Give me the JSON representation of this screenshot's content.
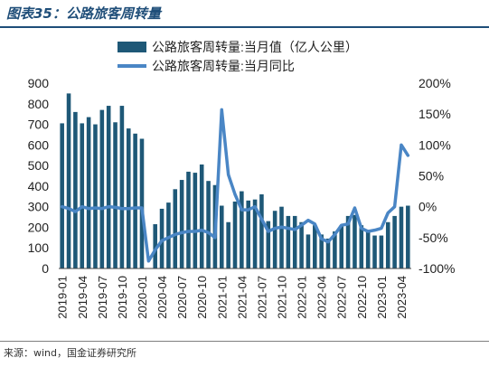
{
  "header": {
    "title": "图表35：公路旅客周转量"
  },
  "footer": {
    "source": "来源：wind，国金证券研究所"
  },
  "colors": {
    "bar": "#1e5877",
    "line": "#4a86c5",
    "title": "#1f4e79"
  },
  "chart_data": {
    "type": "bar+line",
    "left_axis": {
      "ylim": [
        0,
        900
      ],
      "ticks": [
        0,
        100,
        200,
        300,
        400,
        500,
        600,
        700,
        800,
        900
      ]
    },
    "right_axis": {
      "ylim": [
        -100,
        200
      ],
      "ticks": [
        "-100%",
        "-50%",
        "0%",
        "50%",
        "100%",
        "150%",
        "200%"
      ],
      "tick_values": [
        -100,
        -50,
        0,
        50,
        100,
        150,
        200
      ]
    },
    "x_tick_labels": [
      "2019-01",
      "2019-04",
      "2019-07",
      "2019-10",
      "2020-01",
      "2020-04",
      "2020-07",
      "2020-10",
      "2021-01",
      "2021-04",
      "2021-07",
      "2021-10",
      "2022-01",
      "2022-04",
      "2022-07",
      "2022-10",
      "2023-01",
      "2023-04"
    ],
    "legend": {
      "position": "top",
      "items": [
        {
          "label": "公路旅客周转量:当月值（亿人公里）",
          "kind": "bar"
        },
        {
          "label": "公路旅客周转量:当月同比",
          "kind": "line"
        }
      ]
    },
    "categories": [
      "2019-01",
      "2019-02",
      "2019-03",
      "2019-04",
      "2019-05",
      "2019-06",
      "2019-07",
      "2019-08",
      "2019-09",
      "2019-10",
      "2019-11",
      "2019-12",
      "2020-01",
      "2020-02",
      "2020-03",
      "2020-04",
      "2020-05",
      "2020-06",
      "2020-07",
      "2020-08",
      "2020-09",
      "2020-10",
      "2020-11",
      "2020-12",
      "2021-01",
      "2021-02",
      "2021-03",
      "2021-04",
      "2021-05",
      "2021-06",
      "2021-07",
      "2021-08",
      "2021-09",
      "2021-10",
      "2021-11",
      "2021-12",
      "2022-01",
      "2022-02",
      "2022-03",
      "2022-04",
      "2022-05",
      "2022-06",
      "2022-07",
      "2022-08",
      "2022-09",
      "2022-10",
      "2022-11",
      "2022-12",
      "2023-01",
      "2023-02",
      "2023-03",
      "2023-04",
      "2023-05"
    ],
    "series": [
      {
        "name": "公路旅客周转量:当月值（亿人公里）",
        "type": "bar",
        "values": [
          705,
          850,
          760,
          705,
          735,
          700,
          770,
          790,
          710,
          790,
          680,
          655,
          630,
          null,
          215,
          290,
          320,
          385,
          430,
          470,
          465,
          505,
          425,
          405,
          305,
          225,
          325,
          375,
          330,
          335,
          360,
          230,
          280,
          300,
          255,
          255,
          225,
          165,
          210,
          165,
          145,
          180,
          210,
          255,
          260,
          210,
          185,
          160,
          160,
          225,
          255,
          300,
          305
        ]
      },
      {
        "name": "公路旅客周转量:当月同比",
        "type": "line",
        "values": [
          0,
          -3,
          -8,
          0,
          -3,
          -2,
          -3,
          0,
          -1,
          -3,
          -3,
          -2,
          -2,
          -88,
          -70,
          -55,
          -50,
          -45,
          -42,
          -40,
          -40,
          -38,
          -42,
          -50,
          157,
          52,
          20,
          -5,
          -5,
          0,
          -20,
          -40,
          -35,
          -33,
          -35,
          -37,
          -30,
          -22,
          -28,
          -52,
          -57,
          -45,
          -30,
          -28,
          -2,
          -35,
          -40,
          -38,
          -35,
          -10,
          0,
          100,
          83
        ]
      }
    ]
  }
}
